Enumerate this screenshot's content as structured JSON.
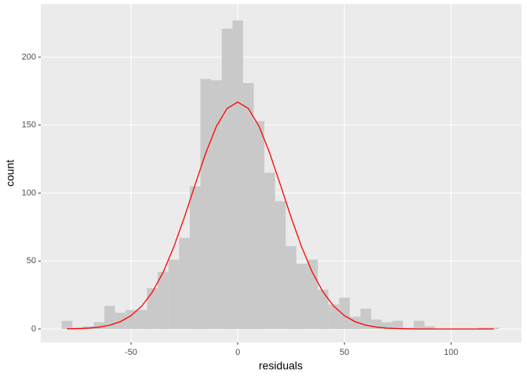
{
  "chart_data": {
    "type": "histogram",
    "xlabel": "residuals",
    "ylabel": "count",
    "bins": [
      -82.5,
      -77.5,
      -72.5,
      -67.5,
      -62.5,
      -57.5,
      -52.5,
      -47.5,
      -42.5,
      -37.5,
      -32.5,
      -27.5,
      -22.5,
      -17.5,
      -12.5,
      -7.5,
      -2.5,
      2.5,
      7.5,
      12.5,
      17.5,
      22.5,
      27.5,
      32.5,
      37.5,
      42.5,
      47.5,
      52.5,
      57.5,
      62.5,
      67.5,
      72.5,
      77.5,
      82.5,
      87.5,
      92.5,
      97.5,
      102.5,
      107.5,
      112.5,
      117.5,
      122.5
    ],
    "values": [
      6,
      1,
      2,
      5,
      17,
      12,
      14,
      14,
      30,
      42,
      51,
      67,
      105,
      184,
      183,
      221,
      227,
      181,
      153,
      115,
      94,
      61,
      48,
      51,
      29,
      18,
      23,
      9,
      15,
      7,
      5,
      6,
      1,
      6,
      2,
      0,
      0,
      0,
      0,
      1,
      1
    ],
    "color": "#c9c9c9",
    "overlay": {
      "type": "line",
      "color": "#ff0000",
      "x": [
        -80,
        -75,
        -70,
        -65,
        -60,
        -55,
        -50,
        -45,
        -40,
        -35,
        -30,
        -25,
        -20,
        -15,
        -10,
        -5,
        0,
        5,
        10,
        15,
        20,
        25,
        30,
        35,
        40,
        45,
        50,
        55,
        60,
        65,
        70,
        75,
        80,
        85,
        90,
        95,
        100,
        105,
        110,
        115,
        120
      ],
      "values": [
        0.1,
        0.3,
        0.6,
        1.4,
        2.8,
        5.4,
        9.8,
        16.8,
        27.2,
        41.6,
        60.2,
        82.2,
        106.1,
        129.4,
        149.1,
        162.3,
        167,
        162.3,
        149.1,
        129.4,
        106.1,
        82.2,
        60.2,
        41.6,
        27.2,
        16.8,
        9.8,
        5.4,
        2.8,
        1.4,
        0.6,
        0.3,
        0.1,
        0,
        0,
        0,
        0,
        0,
        0,
        0,
        0
      ]
    },
    "xlim": [
      -92.3,
      133
    ],
    "ylim": [
      -9.8,
      239.2
    ],
    "xticks": [
      -50,
      0,
      50,
      100
    ],
    "yticks": [
      0,
      50,
      100,
      150,
      200
    ],
    "grid": true
  }
}
